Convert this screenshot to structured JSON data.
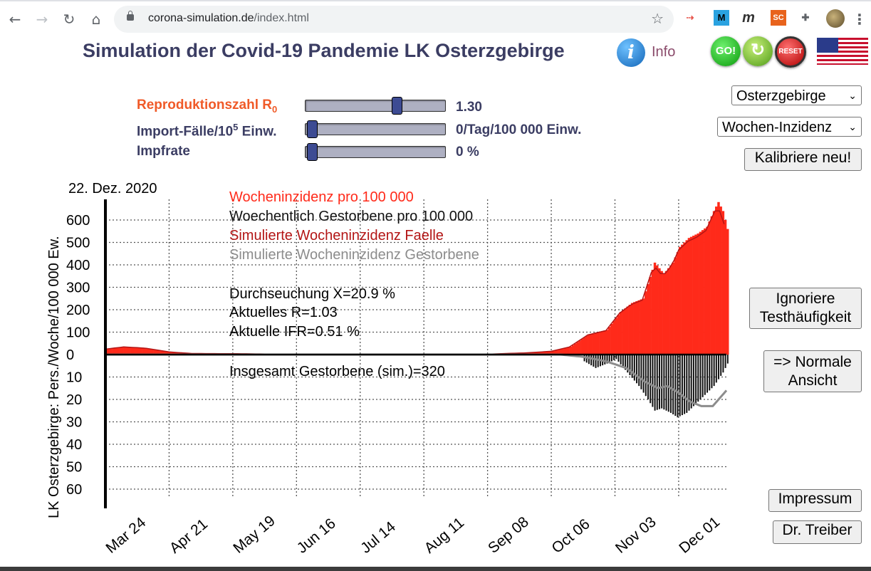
{
  "browser": {
    "url_host": "corona-simulation.de",
    "url_path": "/index.html",
    "extensions": [
      {
        "name": "ext-arrow-icon",
        "glyph": "⇢",
        "color": "#e8584f"
      },
      {
        "name": "ext-m-icon",
        "glyph": "M",
        "color": "#1b6fb5"
      },
      {
        "name": "ext-m-italic-icon",
        "glyph": "m",
        "color": "#333333"
      },
      {
        "name": "ext-sc-icon",
        "glyph": "SC",
        "color": "#e8631c"
      },
      {
        "name": "extensions-puzzle-icon",
        "glyph": "✚",
        "color": "#5f6368"
      }
    ]
  },
  "header": {
    "title": "Simulation der Covid-19 Pandemie LK Osterzgebirge",
    "info_icon": "i",
    "info_label": "Info",
    "go_label": "GO!",
    "reload_label": "↻",
    "reset_label": "RESET",
    "flag": "us-flag"
  },
  "controls": {
    "r0_label_main": "Reproduktionszahl R",
    "r0_label_sub": "0",
    "r0_value": "1.30",
    "r0_fraction": 0.66,
    "import_label_main": "Import-Fälle/10",
    "import_label_sup": "5",
    "import_label_tail": " Einw.",
    "import_value": "0/Tag/100 000 Einw.",
    "import_fraction": 0.0,
    "impf_label": "Impfrate",
    "impf_value": "0 %",
    "impf_fraction": 0.0
  },
  "right_panel": {
    "region_select": "Osterzgebirge",
    "mode_select": "Wochen-Inzidenz",
    "calibrate": "Kalibriere neu!",
    "ignore_line1": "Ignoriere",
    "ignore_line2": "Testhäufigkeit",
    "normal_line1": "=> Normale",
    "normal_line2": "Ansicht",
    "impressum": "Impressum",
    "author": "Dr. Treiber"
  },
  "chart_data": {
    "type": "bar",
    "date_label": "22. Dez. 2020",
    "ylabel": "LK Osterzgebirge: Pers./Woche/100 000 Ew.",
    "upper_ticks": [
      "0",
      "100",
      "200",
      "300",
      "400",
      "500",
      "600"
    ],
    "upper_tick_values": [
      0,
      100,
      200,
      300,
      400,
      500,
      600
    ],
    "lower_ticks": [
      "10",
      "20",
      "30",
      "40",
      "50",
      "60"
    ],
    "lower_tick_values": [
      10,
      20,
      30,
      40,
      50,
      60
    ],
    "upper_ylim": [
      0,
      600
    ],
    "lower_ylim": [
      0,
      60
    ],
    "x_ticks": [
      "Mar 24",
      "Apr 21",
      "May 19",
      "Jun 16",
      "Jul 14",
      "Aug 11",
      "Sep 08",
      "Oct 06",
      "Nov 03",
      "Dec 01"
    ],
    "x_tick_dates": [
      "2020-03-24",
      "2020-04-21",
      "2020-05-19",
      "2020-06-16",
      "2020-07-14",
      "2020-08-11",
      "2020-09-08",
      "2020-10-06",
      "2020-11-03",
      "2020-12-01"
    ],
    "x_range": [
      "2020-03-24",
      "2020-12-22"
    ],
    "grid": true,
    "legend_position": "top-center",
    "legend": [
      {
        "label": "Wocheninzidenz pro 100 000",
        "color": "#ff2a1a"
      },
      {
        "label": "Woechentlich Gestorbene pro 100 000",
        "color": "#111111"
      },
      {
        "label": "Simulierte Wocheninzidenz Faelle",
        "color": "#b31515"
      },
      {
        "label": "Simulierte Wocheninzidenz Gestorbene",
        "color": "#8c8c8c"
      }
    ],
    "annotations": [
      "Durchseuchung X=20.9 %",
      "Aktuelles R=1.03",
      "Aktuelle IFR=0.51 %"
    ],
    "total_deaths_note": "Insgesamt Gestorbene (sim.)=320",
    "series": [
      {
        "name": "Wocheninzidenz pro 100 000",
        "points": [
          [
            "2020-03-24",
            25
          ],
          [
            "2020-04-01",
            35
          ],
          [
            "2020-04-10",
            30
          ],
          [
            "2020-04-21",
            12
          ],
          [
            "2020-05-01",
            5
          ],
          [
            "2020-05-19",
            4
          ],
          [
            "2020-06-10",
            2
          ],
          [
            "2020-07-14",
            0
          ],
          [
            "2020-08-11",
            0
          ],
          [
            "2020-09-08",
            2
          ],
          [
            "2020-09-25",
            8
          ],
          [
            "2020-10-06",
            15
          ],
          [
            "2020-10-14",
            35
          ],
          [
            "2020-10-22",
            90
          ],
          [
            "2020-10-30",
            110
          ],
          [
            "2020-11-05",
            190
          ],
          [
            "2020-11-10",
            230
          ],
          [
            "2020-11-15",
            250
          ],
          [
            "2020-11-20",
            410
          ],
          [
            "2020-11-24",
            360
          ],
          [
            "2020-11-28",
            410
          ],
          [
            "2020-12-01",
            480
          ],
          [
            "2020-12-05",
            520
          ],
          [
            "2020-12-09",
            540
          ],
          [
            "2020-12-13",
            570
          ],
          [
            "2020-12-16",
            640
          ],
          [
            "2020-12-18",
            680
          ],
          [
            "2020-12-20",
            640
          ],
          [
            "2020-12-22",
            560
          ]
        ]
      },
      {
        "name": "Woechentlich Gestorbene pro 100 000",
        "points": [
          [
            "2020-10-20",
            3
          ],
          [
            "2020-10-25",
            6
          ],
          [
            "2020-10-30",
            4
          ],
          [
            "2020-11-03",
            2
          ],
          [
            "2020-11-08",
            8
          ],
          [
            "2020-11-13",
            14
          ],
          [
            "2020-11-17",
            20
          ],
          [
            "2020-11-20",
            25
          ],
          [
            "2020-11-23",
            24
          ],
          [
            "2020-11-27",
            26
          ],
          [
            "2020-11-30",
            28
          ],
          [
            "2020-12-04",
            26
          ],
          [
            "2020-12-08",
            22
          ],
          [
            "2020-12-12",
            18
          ],
          [
            "2020-12-16",
            14
          ],
          [
            "2020-12-20",
            8
          ],
          [
            "2020-12-22",
            4
          ]
        ]
      },
      {
        "name": "Simulierte Wocheninzidenz Gestorbene",
        "points": [
          [
            "2020-03-24",
            0
          ],
          [
            "2020-10-10",
            0
          ],
          [
            "2020-10-20",
            1
          ],
          [
            "2020-10-30",
            3
          ],
          [
            "2020-11-08",
            6
          ],
          [
            "2020-11-16",
            12
          ],
          [
            "2020-11-22",
            15
          ],
          [
            "2020-11-26",
            14
          ],
          [
            "2020-12-01",
            17
          ],
          [
            "2020-12-06",
            21
          ],
          [
            "2020-12-11",
            23
          ],
          [
            "2020-12-16",
            23
          ],
          [
            "2020-12-22",
            16
          ]
        ]
      }
    ]
  }
}
